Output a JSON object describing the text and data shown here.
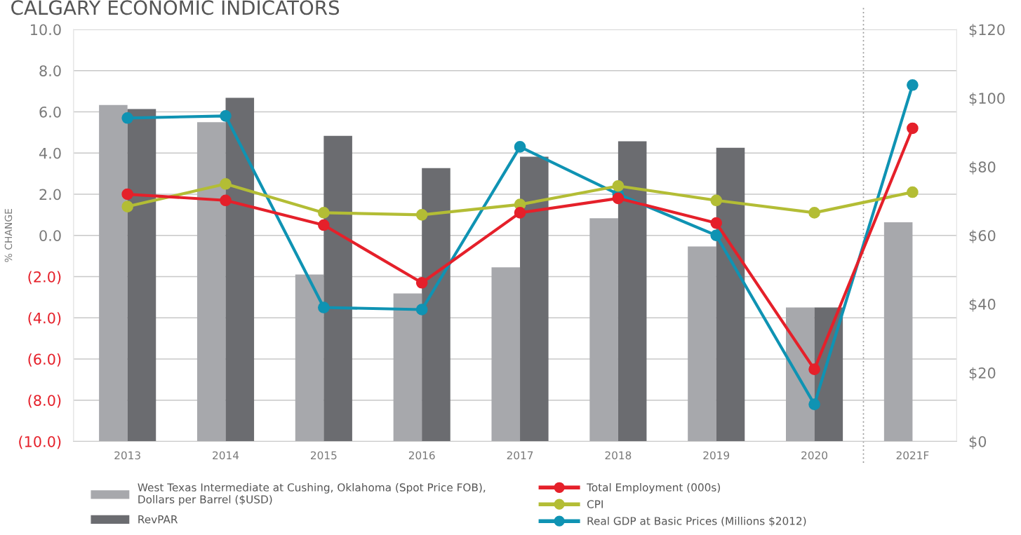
{
  "chart_data": {
    "type": "bar",
    "title": "CALGARY ECONOMIC INDICATORS",
    "ylabel": "% CHANGE",
    "categories": [
      "2013",
      "2014",
      "2015",
      "2016",
      "2017",
      "2018",
      "2019",
      "2020",
      "2021F"
    ],
    "series": [
      {
        "name": "West Texas Intermediate at Cushing, Oklahoma (Spot Price FOB),\nDollars per Barrel ($USD)",
        "axis": "y2",
        "color": "#a7a8ac",
        "values": [
          98.0,
          93.0,
          48.6,
          43.1,
          50.7,
          65.0,
          56.8,
          39.0,
          63.8
        ]
      },
      {
        "name": "RevPAR",
        "axis": "y2",
        "color": "#6b6c70",
        "values": [
          96.8,
          100.1,
          89.0,
          79.6,
          82.9,
          87.4,
          85.5,
          39.0,
          null
        ]
      },
      {
        "name": "Total Employment (000s)",
        "type": "line",
        "color": "#e5202a",
        "values": [
          2.0,
          1.7,
          0.5,
          -2.3,
          1.1,
          1.8,
          0.6,
          -6.5,
          5.2
        ]
      },
      {
        "name": "CPI",
        "type": "line",
        "color": "#b3bd35",
        "values": [
          1.4,
          2.5,
          1.1,
          1.0,
          1.5,
          2.4,
          1.7,
          1.1,
          2.1
        ]
      },
      {
        "name": "Real GDP at Basic Prices (Millions $2012)",
        "type": "line",
        "color": "#0f93b3",
        "values": [
          5.7,
          5.8,
          -3.5,
          -3.6,
          4.3,
          2.0,
          0.0,
          -8.2,
          7.3
        ]
      }
    ],
    "ylim": [
      -10,
      10
    ],
    "yticks": [
      {
        "value": -10,
        "label": "(10.0)"
      },
      {
        "value": -8,
        "label": "(8.0)"
      },
      {
        "value": -6,
        "label": "(6.0)"
      },
      {
        "value": -4,
        "label": "(4.0)"
      },
      {
        "value": -2,
        "label": "(2.0)"
      },
      {
        "value": 0,
        "label": "0.0"
      },
      {
        "value": 2,
        "label": "2.0"
      },
      {
        "value": 4,
        "label": "4.0"
      },
      {
        "value": 6,
        "label": "6.0"
      },
      {
        "value": 8,
        "label": "8.0"
      },
      {
        "value": 10,
        "label": "10.0"
      }
    ],
    "y2lim": [
      0,
      120
    ],
    "y2ticks": [
      {
        "value": 0,
        "label": "$0"
      },
      {
        "value": 20,
        "label": "$20"
      },
      {
        "value": 40,
        "label": "$40"
      },
      {
        "value": 60,
        "label": "$60"
      },
      {
        "value": 80,
        "label": "$80"
      },
      {
        "value": 100,
        "label": "$100"
      },
      {
        "value": 120,
        "label": "$120"
      }
    ],
    "grid": "y",
    "legend": "bottom",
    "marker": "circle",
    "line_style": "solid"
  }
}
